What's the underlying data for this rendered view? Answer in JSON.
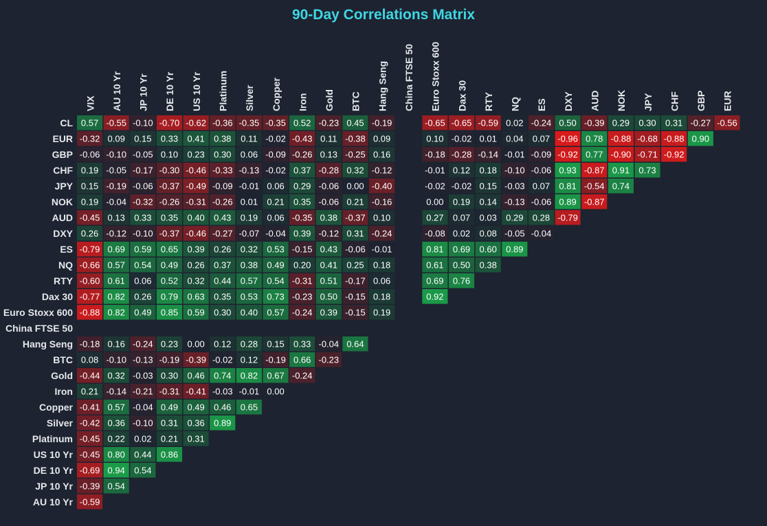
{
  "chart_data": {
    "type": "heatmap",
    "title": "90-Day Correlations Matrix",
    "columns": [
      "VIX",
      "AU 10 Yr",
      "JP 10 Yr",
      "DE 10 Yr",
      "US 10 Yr",
      "Platinum",
      "Silver",
      "Copper",
      "Iron",
      "Gold",
      "BTC",
      "Hang Seng",
      "China FTSE 50",
      "Euro Stoxx 600",
      "Dax 30",
      "RTY",
      "NQ",
      "ES",
      "DXY",
      "AUD",
      "NOK",
      "JPY",
      "CHF",
      "GBP",
      "EUR"
    ],
    "rows": [
      "CL",
      "EUR",
      "GBP",
      "CHF",
      "JPY",
      "NOK",
      "AUD",
      "DXY",
      "ES",
      "NQ",
      "RTY",
      "Dax 30",
      "Euro Stoxx 600",
      "China FTSE 50",
      "Hang Seng",
      "BTC",
      "Gold",
      "Iron",
      "Copper",
      "Silver",
      "Platinum",
      "US 10 Yr",
      "DE 10 Yr",
      "JP 10 Yr",
      "AU 10 Yr"
    ],
    "value_range": [
      -1,
      1
    ],
    "colors": {
      "negative": "#e01a1a",
      "neutral": "#1d2330",
      "positive": "#1aa34a",
      "title": "#3fd6e3"
    },
    "values": [
      [
        0.57,
        -0.55,
        -0.1,
        -0.7,
        -0.62,
        -0.36,
        -0.35,
        -0.35,
        0.52,
        -0.23,
        0.45,
        -0.19,
        null,
        -0.65,
        -0.65,
        -0.59,
        0.02,
        -0.24,
        0.5,
        -0.39,
        0.29,
        0.3,
        0.31,
        -0.27,
        -0.56
      ],
      [
        -0.32,
        0.09,
        0.15,
        0.33,
        0.41,
        0.38,
        0.11,
        -0.02,
        -0.43,
        0.11,
        -0.38,
        0.09,
        null,
        0.1,
        -0.02,
        0.01,
        0.04,
        0.07,
        -0.96,
        0.78,
        -0.88,
        -0.68,
        -0.88,
        0.9
      ],
      [
        -0.06,
        -0.1,
        -0.05,
        0.1,
        0.23,
        0.3,
        0.06,
        -0.09,
        -0.26,
        0.13,
        -0.25,
        0.16,
        null,
        -0.18,
        -0.28,
        -0.14,
        -0.01,
        -0.09,
        -0.92,
        0.77,
        -0.9,
        -0.71,
        -0.92
      ],
      [
        0.19,
        -0.05,
        -0.17,
        -0.3,
        -0.46,
        -0.33,
        -0.13,
        -0.02,
        0.37,
        -0.28,
        0.32,
        -0.12,
        null,
        -0.01,
        0.12,
        0.18,
        -0.1,
        -0.06,
        0.93,
        -0.87,
        0.91,
        0.73
      ],
      [
        0.15,
        -0.19,
        -0.06,
        -0.37,
        -0.49,
        -0.09,
        -0.01,
        0.06,
        0.29,
        -0.06,
        0.0,
        -0.4,
        null,
        -0.02,
        -0.02,
        0.15,
        -0.03,
        0.07,
        0.81,
        -0.54,
        0.74
      ],
      [
        0.19,
        -0.04,
        -0.32,
        -0.26,
        -0.31,
        -0.26,
        0.01,
        0.21,
        0.35,
        -0.06,
        0.21,
        -0.16,
        null,
        0.0,
        0.19,
        0.14,
        -0.13,
        -0.06,
        0.89,
        -0.87
      ],
      [
        -0.45,
        0.13,
        0.33,
        0.35,
        0.4,
        0.43,
        0.19,
        0.06,
        -0.35,
        0.38,
        -0.37,
        0.1,
        null,
        0.27,
        0.07,
        0.03,
        0.29,
        0.28,
        -0.79
      ],
      [
        0.26,
        -0.12,
        -0.1,
        -0.37,
        -0.46,
        -0.27,
        -0.07,
        -0.04,
        0.39,
        -0.12,
        0.31,
        -0.24,
        null,
        -0.08,
        0.02,
        0.08,
        -0.05,
        -0.04
      ],
      [
        -0.79,
        0.69,
        0.59,
        0.65,
        0.39,
        0.26,
        0.32,
        0.53,
        -0.15,
        0.43,
        -0.06,
        -0.01,
        null,
        0.81,
        0.69,
        0.6,
        0.89
      ],
      [
        -0.66,
        0.57,
        0.54,
        0.49,
        0.26,
        0.37,
        0.38,
        0.49,
        0.2,
        0.41,
        0.25,
        0.18,
        null,
        0.61,
        0.5,
        0.38
      ],
      [
        -0.6,
        0.61,
        0.06,
        0.52,
        0.32,
        0.44,
        0.57,
        0.54,
        -0.31,
        0.51,
        -0.17,
        0.06,
        null,
        0.69,
        0.76
      ],
      [
        -0.77,
        0.82,
        0.26,
        0.79,
        0.63,
        0.35,
        0.53,
        0.73,
        -0.23,
        0.5,
        -0.15,
        0.18,
        null,
        0.92
      ],
      [
        -0.88,
        0.82,
        0.49,
        0.85,
        0.59,
        0.3,
        0.4,
        0.57,
        -0.24,
        0.39,
        -0.15,
        0.19
      ],
      [],
      [
        -0.18,
        0.16,
        -0.24,
        0.23,
        0.0,
        0.12,
        0.28,
        0.15,
        0.33,
        -0.04,
        0.64
      ],
      [
        0.08,
        -0.1,
        -0.13,
        -0.19,
        -0.39,
        -0.02,
        0.12,
        -0.19,
        0.66,
        -0.23
      ],
      [
        -0.44,
        0.32,
        -0.03,
        0.3,
        0.46,
        0.74,
        0.82,
        0.67,
        -0.24
      ],
      [
        0.21,
        -0.14,
        -0.21,
        -0.31,
        -0.41,
        -0.03,
        -0.01,
        0.0
      ],
      [
        -0.41,
        0.57,
        -0.04,
        0.49,
        0.49,
        0.46,
        0.65
      ],
      [
        -0.42,
        0.36,
        -0.1,
        0.31,
        0.36,
        0.89
      ],
      [
        -0.45,
        0.22,
        0.02,
        0.21,
        0.31
      ],
      [
        -0.45,
        0.8,
        0.44,
        0.86
      ],
      [
        -0.69,
        0.94,
        0.54
      ],
      [
        -0.39,
        0.54
      ],
      [
        -0.59
      ]
    ]
  }
}
